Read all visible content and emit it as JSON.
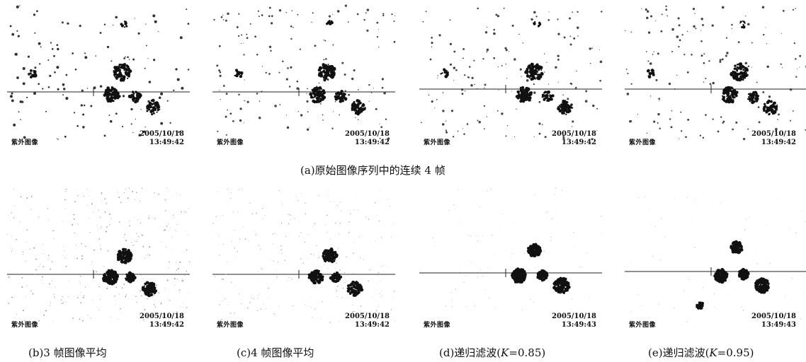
{
  "figure": {
    "top_caption": "(a)原始图像序列中的连续 4 帧",
    "panels": [
      {
        "id": "a1",
        "date": "2005/10/18",
        "time": "13:49:42",
        "label": "紫外图像"
      },
      {
        "id": "a2",
        "date": "2005/10/18",
        "time": "13:49:42",
        "label": "紫外图像"
      },
      {
        "id": "a3",
        "date": "2005/10/18",
        "time": "13:49:42",
        "label": "紫外图像"
      },
      {
        "id": "a4",
        "date": "2005/10/18",
        "time": "13:49:42",
        "label": "紫外图像"
      },
      {
        "id": "b",
        "date": "2005/10/18",
        "time": "13:49:42",
        "label": "紫外图像"
      },
      {
        "id": "c",
        "date": "2005/10/18",
        "time": "13:49:42",
        "label": "紫外图像"
      },
      {
        "id": "d",
        "date": "2005/10/18",
        "time": "13:49:43",
        "label": "紫外图像"
      },
      {
        "id": "e",
        "date": "2005/10/18",
        "time": "13:49:43",
        "label": "紫外图像"
      }
    ],
    "bottom_captions": [
      {
        "prefix": "(b)3 帧图像平均"
      },
      {
        "prefix": "(c)4 帧图像平均"
      },
      {
        "prefix": "(d)递归滤波(",
        "k": "K",
        "suffix": "=0.85)"
      },
      {
        "prefix": "(e)递归滤波(",
        "k": "K",
        "suffix": "=0.95)"
      }
    ]
  }
}
